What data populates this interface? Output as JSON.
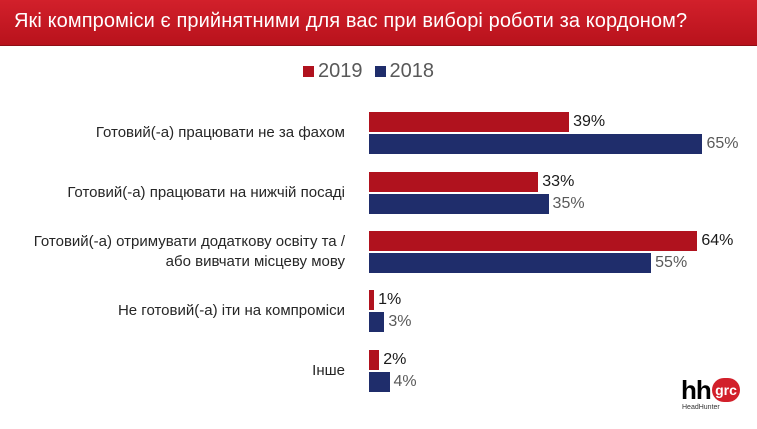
{
  "title": "Які компроміси є прийнятними для вас при виборі роботи за кордоном?",
  "logo": {
    "mark": "hh",
    "badge": "grc",
    "subtitle": "HeadHunter"
  },
  "colors": {
    "accent": "#d2202b",
    "series_2019": "#b0121e",
    "series_2018": "#1f2d6b"
  },
  "chart_data": {
    "type": "bar",
    "orientation": "horizontal",
    "title": "Які компроміси є прийнятними для вас при виборі роботи за кордоном?",
    "legend_position": "top",
    "grid": false,
    "xlim": [
      0,
      100
    ],
    "categories": [
      [
        "Готовий(-а) працювати не за фахом"
      ],
      [
        "Готовий(-а) працювати на нижчій посаді"
      ],
      [
        "Готовий(-а) отримувати додаткову освіту та /",
        "або вивчати місцеву мову"
      ],
      [
        "Не готовий(-а) іти на компроміси"
      ],
      [
        "Інше"
      ]
    ],
    "series": [
      {
        "name": "2019",
        "color": "#b0121e",
        "values": [
          39,
          33,
          64,
          1,
          2
        ],
        "labels": [
          "39%",
          "33%",
          "64%",
          "1%",
          "2%"
        ]
      },
      {
        "name": "2018",
        "color": "#1f2d6b",
        "values": [
          65,
          35,
          55,
          3,
          4
        ],
        "labels": [
          "65%",
          "35%",
          "55%",
          "3%",
          "4%"
        ]
      }
    ]
  }
}
